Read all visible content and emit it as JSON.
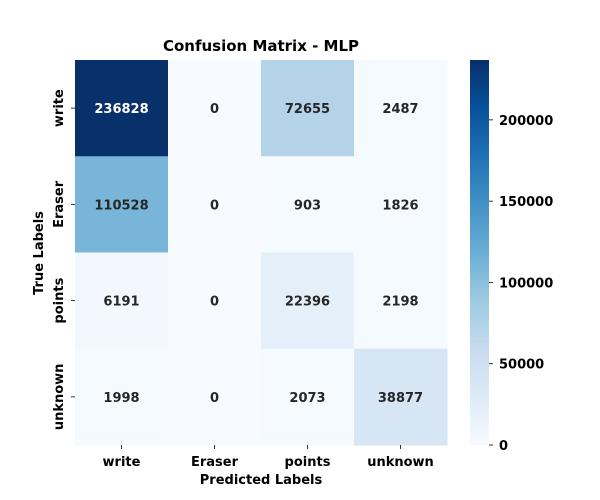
{
  "chart_data": {
    "type": "heatmap",
    "title": "Confusion Matrix - MLP",
    "xlabel": "Predicted Labels",
    "ylabel": "True Labels",
    "x_categories": [
      "write",
      "Eraser",
      "points",
      "unknown"
    ],
    "y_categories": [
      "write",
      "Eraser",
      "points",
      "unknown"
    ],
    "values": [
      [
        236828,
        0,
        72655,
        2487
      ],
      [
        110528,
        0,
        903,
        1826
      ],
      [
        6191,
        0,
        22396,
        2198
      ],
      [
        1998,
        0,
        2073,
        38877
      ]
    ],
    "colormap": "Blues",
    "color_range": [
      0,
      236828
    ],
    "colorbar_ticks": [
      0,
      50000,
      100000,
      150000,
      200000
    ],
    "colors": {
      "low": "#f7fbff",
      "high": "#08306b",
      "text_light": "#ffffff",
      "text_dark": "#262626"
    }
  }
}
